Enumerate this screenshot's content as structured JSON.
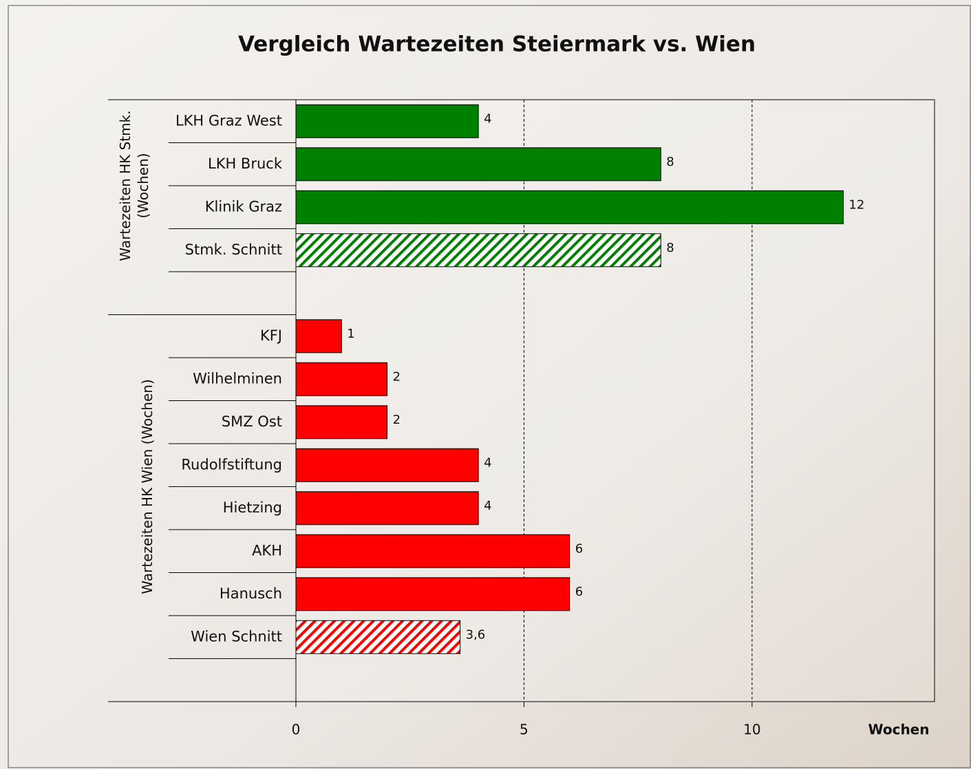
{
  "chart_data": {
    "type": "grouped-bar",
    "orientation": "horizontal",
    "title": "Vergleich Wartezeiten Steiermark vs. Wien",
    "x_label": "Wochen",
    "xlim": [
      0,
      14
    ],
    "xticks": [
      0,
      5,
      10
    ],
    "grid": true,
    "groups": [
      {
        "label": [
          "Wartezeiten HK Stmk.",
          "(Wochen)"
        ],
        "color": "#008000",
        "categories": [
          "LKH Graz West",
          "LKH Bruck",
          "Klinik Graz",
          "Stmk. Schnitt"
        ],
        "values": [
          4,
          8,
          12,
          8
        ],
        "hatched": [
          false,
          false,
          false,
          true
        ]
      },
      {
        "label": [
          "Wartezeiten HK Wien (Wochen)"
        ],
        "color": "#ff0000",
        "categories": [
          "KFJ",
          "Wilhelminen",
          "SMZ Ost",
          "Rudolfstiftung",
          "Hietzing",
          "AKH",
          "Hanusch",
          "Wien Schnitt"
        ],
        "values": [
          1,
          2,
          2,
          4,
          4,
          6,
          6,
          3.6
        ],
        "value_labels": [
          "1",
          "2",
          "2",
          "4",
          "4",
          "6",
          "6",
          "3,6"
        ],
        "hatched": [
          false,
          false,
          false,
          false,
          false,
          false,
          false,
          true
        ]
      }
    ]
  }
}
